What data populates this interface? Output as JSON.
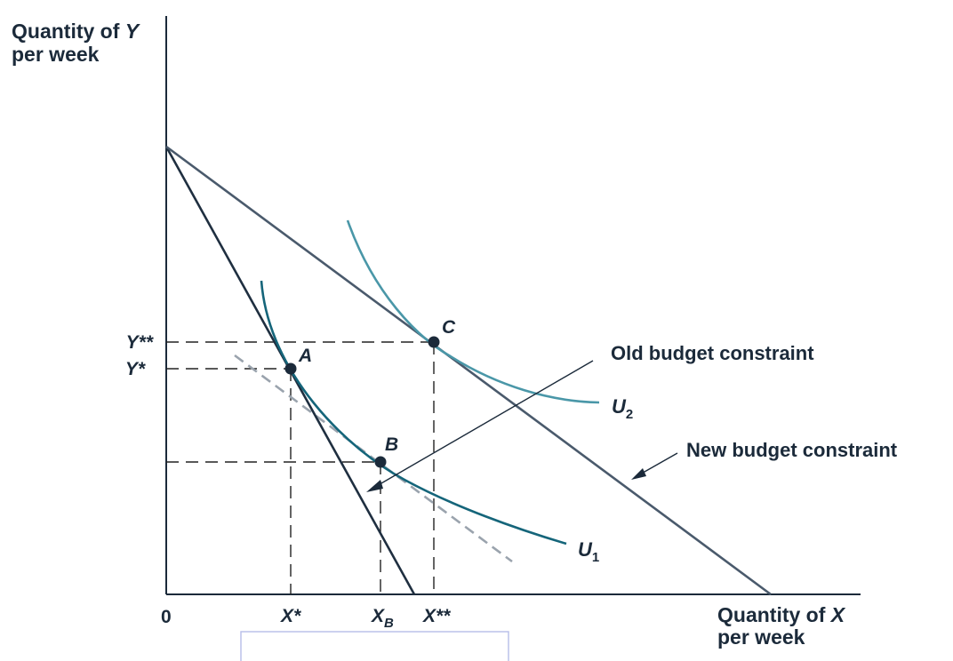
{
  "axes": {
    "y_title_line1": "Quantity of ",
    "y_title_var": "Y",
    "y_title_line2": "per week",
    "x_title_line1": "Quantity of ",
    "x_title_var": "X",
    "x_title_line2": "per week",
    "origin": "0"
  },
  "ticks": {
    "y_star": "Y*",
    "y_dstar": "Y**",
    "x_star": "X*",
    "x_b_main": "X",
    "x_b_sub": "B",
    "x_dstar": "X**"
  },
  "points": {
    "a": "A",
    "b": "B",
    "c": "C"
  },
  "curves": {
    "u1_main": "U",
    "u1_sub": "1",
    "u2_main": "U",
    "u2_sub": "2"
  },
  "annotations": {
    "old_budget": "Old budget constraint",
    "new_budget": "New budget constraint"
  },
  "colors": {
    "old_budget_line": "#1f2f40",
    "new_budget_line": "#4a5a6c",
    "u1_curve": "#15657a",
    "u2_curve": "#4a97a8",
    "compensated_line": "#9aa3ad"
  }
}
